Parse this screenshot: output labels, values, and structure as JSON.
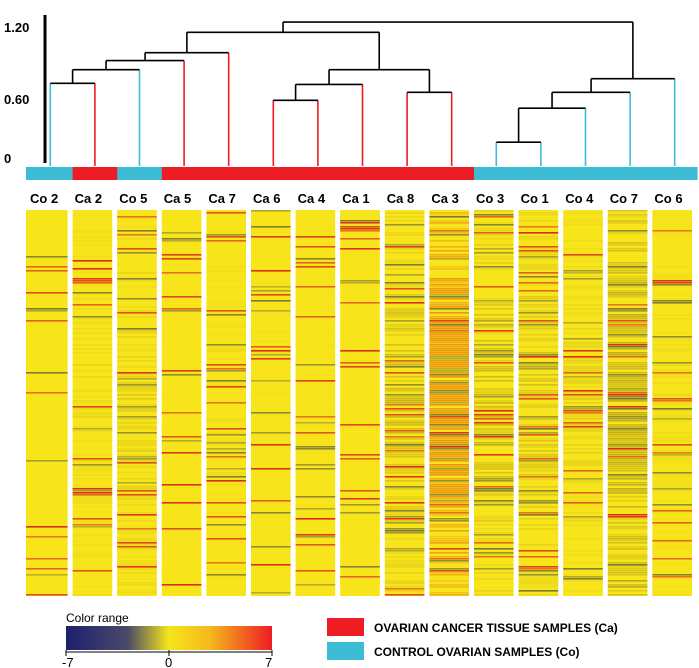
{
  "chart_data": {
    "type": "heatmap",
    "title": "",
    "columns": [
      "Co 2",
      "Ca 2",
      "Co 5",
      "Ca 5",
      "Ca 7",
      "Ca 6",
      "Ca 4",
      "Ca 1",
      "Ca 8",
      "Ca 3",
      "Co 3",
      "Co 1",
      "Co 4",
      "Co 7",
      "Co 6"
    ],
    "groups": [
      "Co",
      "Ca",
      "Co",
      "Ca",
      "Ca",
      "Ca",
      "Ca",
      "Ca",
      "Ca",
      "Ca",
      "Co",
      "Co",
      "Co",
      "Co",
      "Co"
    ],
    "group_colors": {
      "Ca": "#ee1c24",
      "Co": "#3dbcd6"
    },
    "dendrogram": {
      "y_ticks": [
        "1.20",
        "0.60",
        "0"
      ],
      "ylim": [
        0,
        1.25
      ],
      "merges": [
        {
          "left": 0,
          "right": 1,
          "height": 0.73
        },
        {
          "left": "n0",
          "right": 2,
          "height": 0.85
        },
        {
          "left": "n1",
          "right": 3,
          "height": 0.93
        },
        {
          "left": "n2",
          "right": 4,
          "height": 1.0
        },
        {
          "left": 5,
          "right": 6,
          "height": 0.58
        },
        {
          "left": "n4",
          "right": 7,
          "height": 0.72
        },
        {
          "left": 8,
          "right": 9,
          "height": 0.65
        },
        {
          "left": "n5",
          "right": "n6",
          "height": 0.85
        },
        {
          "left": "n3",
          "right": "n7",
          "height": 1.18
        },
        {
          "left": 10,
          "right": 11,
          "height": 0.21
        },
        {
          "left": "n9",
          "right": 12,
          "height": 0.51
        },
        {
          "left": "n10",
          "right": 13,
          "height": 0.65
        },
        {
          "left": "n11",
          "right": 14,
          "height": 0.77
        },
        {
          "left": "n8",
          "right": "n12",
          "height": 1.27
        }
      ]
    },
    "column_profile": [
      0.0,
      0.4,
      0.7,
      0.0,
      0.3,
      0.1,
      0.1,
      0.05,
      1.2,
      2.4,
      1.2,
      1.0,
      0.6,
      2.2,
      0.3
    ],
    "color_range": {
      "min": -7,
      "mid": 0,
      "max": 7
    },
    "colormap": [
      "#1c1f6e",
      "#f5e61c",
      "#ee1c24"
    ]
  },
  "legend": {
    "items": [
      {
        "label": "OVARIAN CANCER TISSUE SAMPLES (Ca)",
        "color": "#ee1c24"
      },
      {
        "label": "CONTROL OVARIAN SAMPLES (Co)",
        "color": "#3dbcd6"
      }
    ],
    "color_range_title": "Color range",
    "color_range_ticks": [
      "-7",
      "0",
      "7"
    ]
  }
}
